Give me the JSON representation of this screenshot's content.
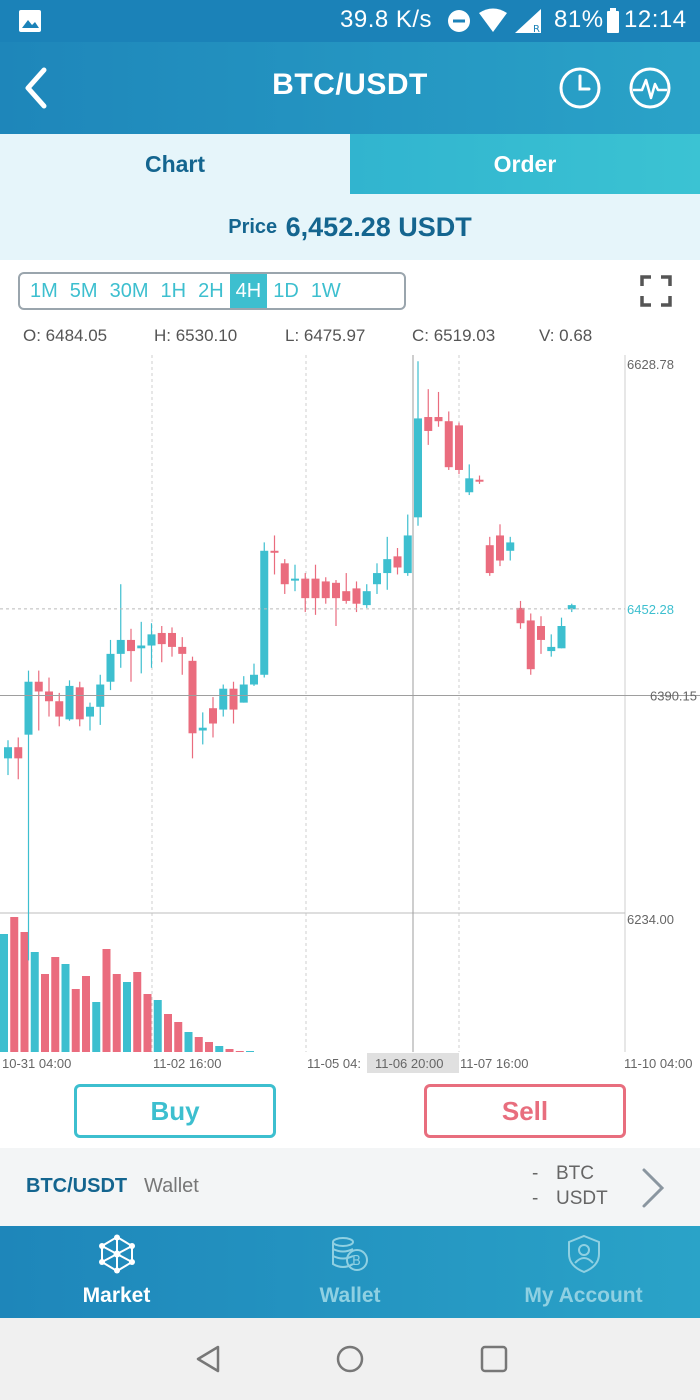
{
  "status_bar": {
    "speed": "39.8 K/s",
    "battery": "81%",
    "time": "12:14"
  },
  "header": {
    "title": "BTC/USDT"
  },
  "tabs": [
    {
      "label": "Chart",
      "active": true
    },
    {
      "label": "Order",
      "active": false
    }
  ],
  "price": {
    "label": "Price",
    "value": "6,452.28 USDT"
  },
  "intervals": [
    {
      "label": "1M",
      "active": false
    },
    {
      "label": "5M",
      "active": false
    },
    {
      "label": "30M",
      "active": false
    },
    {
      "label": "1H",
      "active": false
    },
    {
      "label": "2H",
      "active": false
    },
    {
      "label": "4H",
      "active": true
    },
    {
      "label": "1D",
      "active": false
    },
    {
      "label": "1W",
      "active": false
    }
  ],
  "ohlcv": {
    "open": "O: 6484.05",
    "high": "H: 6530.10",
    "low": "L: 6475.97",
    "close": "C: 6519.03",
    "volume": "V: 0.68"
  },
  "colors": {
    "up": "#3dbfcf",
    "down": "#ea6c7e",
    "brand": "#1e86ba"
  },
  "chart_data": {
    "type": "candlestick",
    "price_labels": [
      "6628.78",
      "6452.28",
      "6390.15",
      "6234.00"
    ],
    "current_price": 6452.28,
    "crosshair_price": 6390.15,
    "x_labels": [
      "10-31 04:00",
      "11-02 16:00",
      "11-05 04:",
      "11-06 20:00",
      "11-07 16:00",
      "11-10 04:00"
    ],
    "ylim": [
      6234.0,
      6628.78
    ],
    "candles": [
      {
        "o": 6345,
        "c": 6353,
        "h": 6358,
        "l": 6333
      },
      {
        "o": 6353,
        "c": 6345,
        "h": 6360,
        "l": 6330
      },
      {
        "o": 6362,
        "c": 6400,
        "h": 6408,
        "l": 6200
      },
      {
        "o": 6400,
        "c": 6393,
        "h": 6408,
        "l": 6365
      },
      {
        "o": 6393,
        "c": 6386,
        "h": 6403,
        "l": 6375
      },
      {
        "o": 6386,
        "c": 6375,
        "h": 6392,
        "l": 6368
      },
      {
        "o": 6373,
        "c": 6397,
        "h": 6401,
        "l": 6372
      },
      {
        "o": 6396,
        "c": 6373,
        "h": 6400,
        "l": 6368
      },
      {
        "o": 6375,
        "c": 6382,
        "h": 6385,
        "l": 6365
      },
      {
        "o": 6382,
        "c": 6398,
        "h": 6405,
        "l": 6369
      },
      {
        "o": 6400,
        "c": 6420,
        "h": 6430,
        "l": 6394
      },
      {
        "o": 6420,
        "c": 6430,
        "h": 6470,
        "l": 6410
      },
      {
        "o": 6430,
        "c": 6422,
        "h": 6438,
        "l": 6400
      },
      {
        "o": 6424,
        "c": 6426,
        "h": 6443,
        "l": 6406
      },
      {
        "o": 6426,
        "c": 6434,
        "h": 6442,
        "l": 6410
      },
      {
        "o": 6435,
        "c": 6427,
        "h": 6440,
        "l": 6414
      },
      {
        "o": 6435,
        "c": 6425,
        "h": 6439,
        "l": 6418
      },
      {
        "o": 6425,
        "c": 6420,
        "h": 6432,
        "l": 6405
      },
      {
        "o": 6415,
        "c": 6363,
        "h": 6418,
        "l": 6345
      },
      {
        "o": 6365,
        "c": 6367,
        "h": 6378,
        "l": 6355
      },
      {
        "o": 6381,
        "c": 6370,
        "h": 6389,
        "l": 6360
      },
      {
        "o": 6380,
        "c": 6395,
        "h": 6398,
        "l": 6375
      },
      {
        "o": 6395,
        "c": 6380,
        "h": 6400,
        "l": 6370
      },
      {
        "o": 6385,
        "c": 6398,
        "h": 6404,
        "l": 6385
      },
      {
        "o": 6398,
        "c": 6405,
        "h": 6413,
        "l": 6397
      },
      {
        "o": 6405,
        "c": 6494,
        "h": 6500,
        "l": 6403
      },
      {
        "o": 6494,
        "c": 6493,
        "h": 6505,
        "l": 6477
      },
      {
        "o": 6485,
        "c": 6470,
        "h": 6488,
        "l": 6463
      },
      {
        "o": 6473,
        "c": 6474,
        "h": 6484,
        "l": 6465
      },
      {
        "o": 6474,
        "c": 6460,
        "h": 6478,
        "l": 6450
      },
      {
        "o": 6474,
        "c": 6460,
        "h": 6484,
        "l": 6448
      },
      {
        "o": 6472,
        "c": 6460,
        "h": 6475,
        "l": 6456
      },
      {
        "o": 6471,
        "c": 6460,
        "h": 6473,
        "l": 6440
      },
      {
        "o": 6465,
        "c": 6458,
        "h": 6478,
        "l": 6456
      },
      {
        "o": 6467,
        "c": 6456,
        "h": 6472,
        "l": 6450
      },
      {
        "o": 6455,
        "c": 6465,
        "h": 6470,
        "l": 6453
      },
      {
        "o": 6470,
        "c": 6478,
        "h": 6485,
        "l": 6463
      },
      {
        "o": 6478,
        "c": 6488,
        "h": 6504,
        "l": 6466
      },
      {
        "o": 6490,
        "c": 6482,
        "h": 6496,
        "l": 6477
      },
      {
        "o": 6478,
        "c": 6505,
        "h": 6520,
        "l": 6476
      },
      {
        "o": 6518,
        "c": 6589,
        "h": 6630,
        "l": 6512
      },
      {
        "o": 6590,
        "c": 6580,
        "h": 6610,
        "l": 6570
      },
      {
        "o": 6590,
        "c": 6587,
        "h": 6608,
        "l": 6583
      },
      {
        "o": 6587,
        "c": 6554,
        "h": 6594,
        "l": 6552
      },
      {
        "o": 6584,
        "c": 6552,
        "h": 6586,
        "l": 6549
      },
      {
        "o": 6536,
        "c": 6546,
        "h": 6556,
        "l": 6534
      },
      {
        "o": 6545,
        "c": 6544,
        "h": 6548,
        "l": 6542
      },
      {
        "o": 6498,
        "c": 6478,
        "h": 6504,
        "l": 6476
      },
      {
        "o": 6505,
        "c": 6487,
        "h": 6513,
        "l": 6483
      },
      {
        "o": 6494,
        "c": 6500,
        "h": 6504,
        "l": 6487
      },
      {
        "o": 6453,
        "c": 6442,
        "h": 6458,
        "l": 6438
      },
      {
        "o": 6444,
        "c": 6409,
        "h": 6449,
        "l": 6405
      },
      {
        "o": 6440,
        "c": 6430,
        "h": 6447,
        "l": 6420
      },
      {
        "o": 6422,
        "c": 6425,
        "h": 6434,
        "l": 6418
      },
      {
        "o": 6424,
        "c": 6440,
        "h": 6446,
        "l": 6424
      },
      {
        "o": 6452,
        "c": 6455,
        "h": 6456,
        "l": 6450
      }
    ]
  },
  "actions": {
    "buy": "Buy",
    "sell": "Sell"
  },
  "wallet": {
    "pair": "BTC/USDT",
    "label": "Wallet",
    "lines": [
      {
        "dash": "-",
        "coin": "BTC"
      },
      {
        "dash": "-",
        "coin": "USDT"
      }
    ]
  },
  "bottom_nav": [
    {
      "label": "Market",
      "icon": "network-icon",
      "active": true
    },
    {
      "label": "Wallet",
      "icon": "coins-icon",
      "active": false
    },
    {
      "label": "My Account",
      "icon": "shield-user-icon",
      "active": false
    }
  ]
}
